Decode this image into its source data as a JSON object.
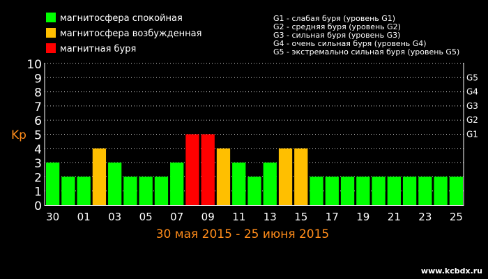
{
  "legend": {
    "items": [
      {
        "label": "магнитосфера спокойная",
        "color": "#00ff00"
      },
      {
        "label": "магнитосфера возбужденная",
        "color": "#ffbf00"
      },
      {
        "label": "магнитная буря",
        "color": "#ff0000"
      }
    ],
    "g_scale": [
      "G1 - слабая буря (уровень G1)",
      "G2 - средняя буря (уровень G2)",
      "G3 - сильная буря (уровень G3)",
      "G4 - очень сильная буря (уровень G4)",
      "G5 - экстремально сильная буря (уровень G5)"
    ]
  },
  "chart_data": {
    "type": "bar",
    "ylabel": "Kp",
    "ylim": [
      0,
      10
    ],
    "y_ticks": [
      0,
      1,
      2,
      3,
      4,
      5,
      6,
      7,
      8,
      9,
      10
    ],
    "g_levels": [
      {
        "label": "G1",
        "kp": 5
      },
      {
        "label": "G2",
        "kp": 6
      },
      {
        "label": "G3",
        "kp": 7
      },
      {
        "label": "G4",
        "kp": 8
      },
      {
        "label": "G5",
        "kp": 9
      }
    ],
    "x_tick_labels": [
      "30",
      "01",
      "03",
      "05",
      "07",
      "09",
      "11",
      "13",
      "15",
      "17",
      "19",
      "21",
      "23",
      "25"
    ],
    "date_range": "30 мая 2015 - 25 июня 2015",
    "values": [
      3,
      2,
      2,
      4,
      3,
      2,
      2,
      2,
      3,
      5,
      5,
      4,
      3,
      2,
      3,
      4,
      4,
      2,
      2,
      2,
      2,
      2,
      2,
      2,
      2,
      2,
      2
    ],
    "colors": {
      "quiet": "#00ff00",
      "active": "#ffbf00",
      "storm": "#ff0000"
    },
    "grid": true,
    "watermark": "www.kcbdx.ru"
  }
}
